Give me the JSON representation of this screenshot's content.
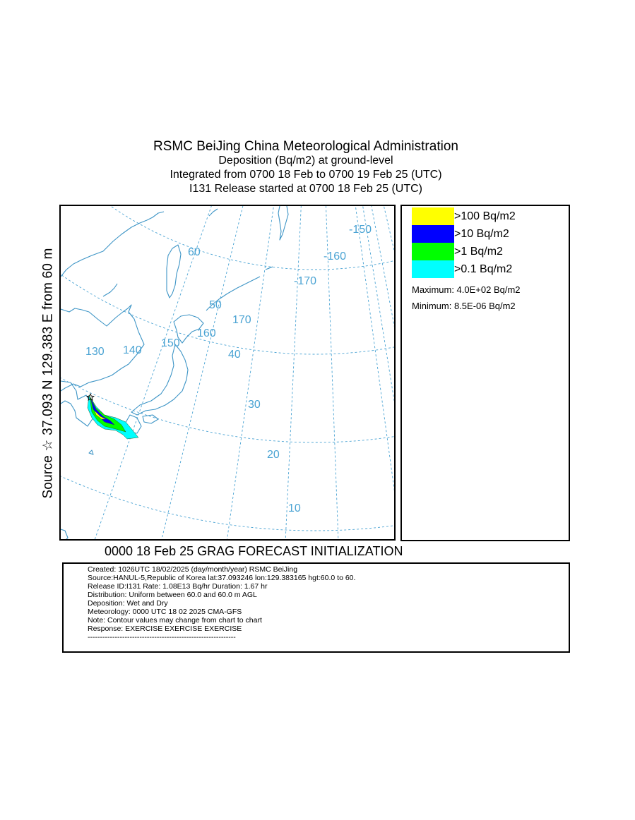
{
  "header": {
    "title": "RSMC BeiJing China Meteorological Administration",
    "subtitle": "Deposition  (Bq/m2) at ground-level",
    "integration": "Integrated from 0700 18 Feb to 0700 19 Feb 25 (UTC)",
    "release": "I131 Release started at 0700 18 Feb 25 (UTC)"
  },
  "side_label": "Source ☆ 37.093  N 129.383  E     from   60 m",
  "map": {
    "longitude_labels": [
      "130",
      "140",
      "150",
      "160",
      "170",
      "-170",
      "-160",
      "-150"
    ],
    "latitude_labels": [
      "60",
      "50",
      "40",
      "30",
      "20",
      "10"
    ],
    "graticule_color": "#4aa3d3",
    "coastline_color": "#3e95c6",
    "source_marker": "star-icon",
    "plume_colors": [
      "#00ffff",
      "#00ff00",
      "#0000ff",
      "#ffff00"
    ]
  },
  "legend": {
    "items": [
      {
        "label": ">100 Bq/m2",
        "color": "#ffff00"
      },
      {
        "label": ">10 Bq/m2",
        "color": "#0000ff"
      },
      {
        "label": ">1 Bq/m2",
        "color": "#00ff00"
      },
      {
        "label": ">0.1 Bq/m2",
        "color": "#00ffff"
      }
    ],
    "maximum": "Maximum: 4.0E+02 Bq/m2",
    "minimum": "Minimum: 8.5E-06 Bq/m2"
  },
  "footer_title": "0000 18 Feb 25 GRAG FORECAST INITIALIZATION",
  "info": {
    "lines": [
      "Created: 1026UTC 18/02/2025 (day/month/year) RSMC BeiJing",
      "Source:HANUL-5,Republic of Korea  lat:37.093246  lon:129.383165  hgt:60.0 to 60.",
      "Release ID:I131   Rate: 1.08E13 Bq/hr  Duration: 1.67 hr",
      "Distribution: Uniform between 60.0 and 60.0 m AGL",
      "Deposition:   Wet and Dry",
      "Meteorology: 0000 UTC 18 02 2025 CMA-GFS",
      "Note: Contour values may change from chart to chart",
      "Response: EXERCISE  EXERCISE  EXERCISE",
      "------------------------------------------------------------"
    ]
  }
}
